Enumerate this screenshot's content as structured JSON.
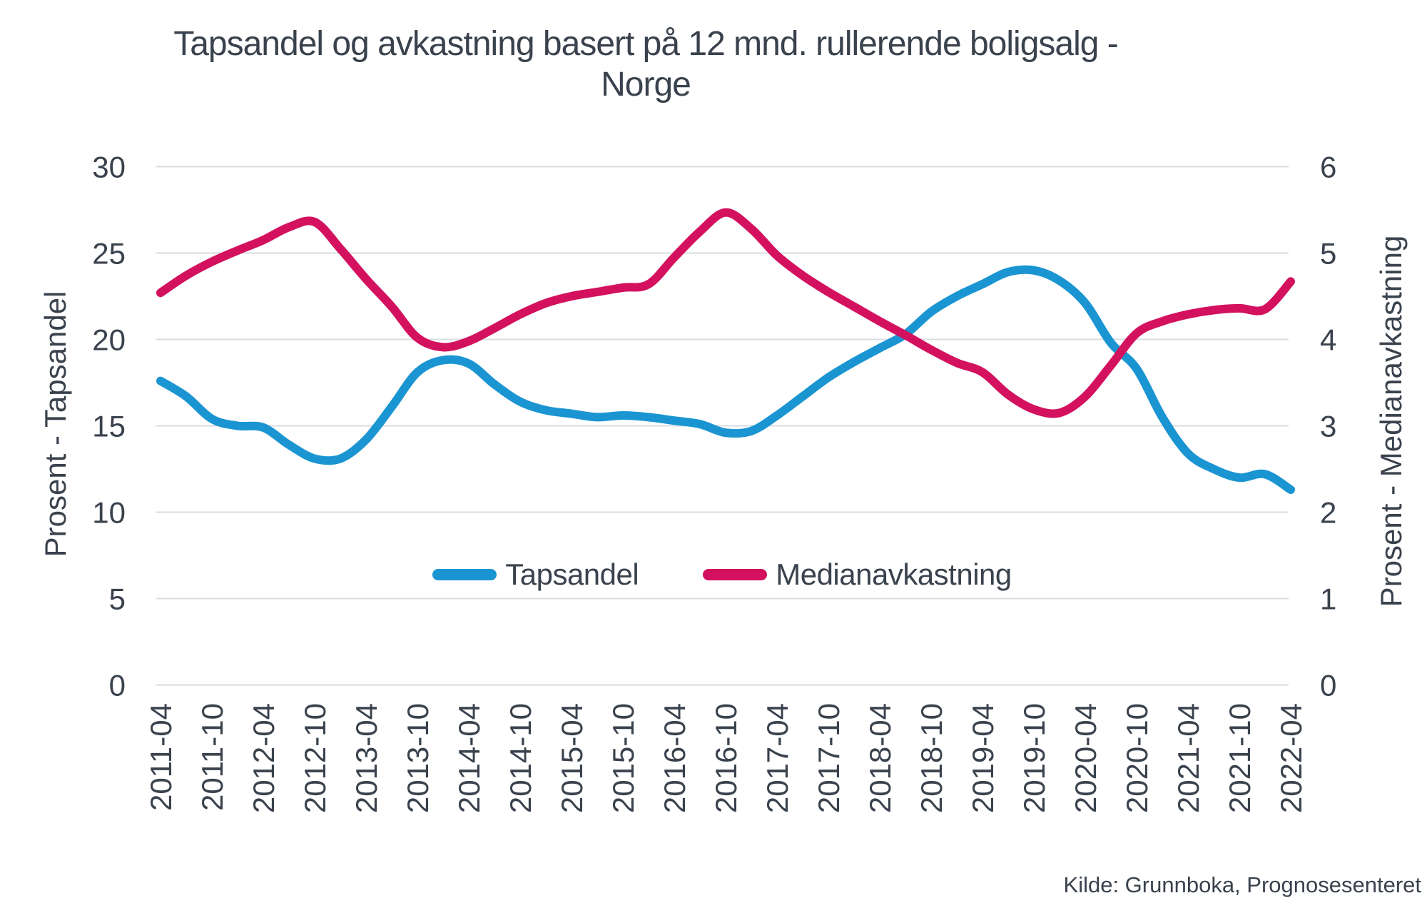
{
  "title": {
    "line1": "Tapsandel og avkastning basert på 12 mnd. rullerende boligsalg -",
    "line2": "Norge"
  },
  "source": "Kilde: Grunnboka, Prognosesenteret",
  "colors": {
    "tapsandel_blue": "#1b95d2",
    "medianavkastning_pink": "#d3115f",
    "text": "#39424d",
    "grid": "#d9dce0",
    "background": "#ffffff"
  },
  "chart_data": {
    "type": "line",
    "title": "Tapsandel og avkastning basert på 12 mnd. rullerende boligsalg - Norge",
    "grid": "horizontal",
    "legend_position": "inside-bottom-center",
    "x_tick_labels": [
      "2011-04",
      "2011-10",
      "2012-04",
      "2012-10",
      "2013-04",
      "2013-10",
      "2014-04",
      "2014-10",
      "2015-04",
      "2015-10",
      "2016-04",
      "2016-10",
      "2017-04",
      "2017-10",
      "2018-04",
      "2018-10",
      "2019-04",
      "2019-10",
      "2020-04",
      "2020-10",
      "2021-04",
      "2021-10",
      "2022-04"
    ],
    "left_axis": {
      "label": "Prosent - Tapsandel",
      "ticks": [
        0,
        5,
        10,
        15,
        20,
        25,
        30
      ],
      "range": [
        0,
        30
      ]
    },
    "right_axis": {
      "label": "Prosent - Medianavkastning",
      "ticks": [
        0,
        1,
        2,
        3,
        4,
        5,
        6
      ],
      "range": [
        0,
        6
      ]
    },
    "series": [
      {
        "name": "Tapsandel",
        "axis": "left",
        "color": "#1b95d2",
        "points": [
          [
            "2011-04",
            17.6
          ],
          [
            "2011-07",
            16.7
          ],
          [
            "2011-10",
            15.4
          ],
          [
            "2012-01",
            15.0
          ],
          [
            "2012-04",
            14.9
          ],
          [
            "2012-07",
            13.9
          ],
          [
            "2012-10",
            13.1
          ],
          [
            "2013-01",
            13.1
          ],
          [
            "2013-04",
            14.2
          ],
          [
            "2013-07",
            16.1
          ],
          [
            "2013-10",
            18.1
          ],
          [
            "2014-01",
            18.8
          ],
          [
            "2014-04",
            18.6
          ],
          [
            "2014-07",
            17.4
          ],
          [
            "2014-10",
            16.4
          ],
          [
            "2015-01",
            15.9
          ],
          [
            "2015-04",
            15.7
          ],
          [
            "2015-07",
            15.5
          ],
          [
            "2015-10",
            15.6
          ],
          [
            "2016-01",
            15.5
          ],
          [
            "2016-04",
            15.3
          ],
          [
            "2016-07",
            15.1
          ],
          [
            "2016-10",
            14.6
          ],
          [
            "2017-01",
            14.7
          ],
          [
            "2017-04",
            15.6
          ],
          [
            "2017-07",
            16.7
          ],
          [
            "2017-10",
            17.8
          ],
          [
            "2018-01",
            18.7
          ],
          [
            "2018-04",
            19.5
          ],
          [
            "2018-07",
            20.3
          ],
          [
            "2018-10",
            21.6
          ],
          [
            "2019-01",
            22.5
          ],
          [
            "2019-04",
            23.2
          ],
          [
            "2019-07",
            23.9
          ],
          [
            "2019-10",
            24.0
          ],
          [
            "2020-01",
            23.4
          ],
          [
            "2020-04",
            22.1
          ],
          [
            "2020-07",
            19.8
          ],
          [
            "2020-10",
            18.3
          ],
          [
            "2021-01",
            15.5
          ],
          [
            "2021-04",
            13.4
          ],
          [
            "2021-07",
            12.5
          ],
          [
            "2021-10",
            12.0
          ],
          [
            "2022-01",
            12.2
          ],
          [
            "2022-04",
            11.3
          ]
        ]
      },
      {
        "name": "Medianavkastning",
        "axis": "right",
        "color": "#d3115f",
        "points": [
          [
            "2011-04",
            4.54
          ],
          [
            "2011-07",
            4.74
          ],
          [
            "2011-10",
            4.9
          ],
          [
            "2012-01",
            5.03
          ],
          [
            "2012-04",
            5.15
          ],
          [
            "2012-07",
            5.3
          ],
          [
            "2012-10",
            5.36
          ],
          [
            "2013-01",
            5.05
          ],
          [
            "2013-04",
            4.7
          ],
          [
            "2013-07",
            4.38
          ],
          [
            "2013-10",
            4.02
          ],
          [
            "2014-01",
            3.91
          ],
          [
            "2014-04",
            3.98
          ],
          [
            "2014-07",
            4.13
          ],
          [
            "2014-10",
            4.29
          ],
          [
            "2015-01",
            4.42
          ],
          [
            "2015-04",
            4.5
          ],
          [
            "2015-07",
            4.55
          ],
          [
            "2015-10",
            4.6
          ],
          [
            "2016-01",
            4.64
          ],
          [
            "2016-04",
            4.95
          ],
          [
            "2016-07",
            5.25
          ],
          [
            "2016-10",
            5.47
          ],
          [
            "2017-01",
            5.28
          ],
          [
            "2017-04",
            4.97
          ],
          [
            "2017-07",
            4.74
          ],
          [
            "2017-10",
            4.55
          ],
          [
            "2018-01",
            4.38
          ],
          [
            "2018-04",
            4.21
          ],
          [
            "2018-07",
            4.05
          ],
          [
            "2018-10",
            3.88
          ],
          [
            "2019-01",
            3.73
          ],
          [
            "2019-04",
            3.62
          ],
          [
            "2019-07",
            3.36
          ],
          [
            "2019-10",
            3.19
          ],
          [
            "2020-01",
            3.15
          ],
          [
            "2020-04",
            3.34
          ],
          [
            "2020-07",
            3.7
          ],
          [
            "2020-10",
            4.07
          ],
          [
            "2021-01",
            4.21
          ],
          [
            "2021-04",
            4.29
          ],
          [
            "2021-07",
            4.34
          ],
          [
            "2021-10",
            4.36
          ],
          [
            "2022-01",
            4.35
          ],
          [
            "2022-04",
            4.67
          ]
        ]
      }
    ]
  }
}
